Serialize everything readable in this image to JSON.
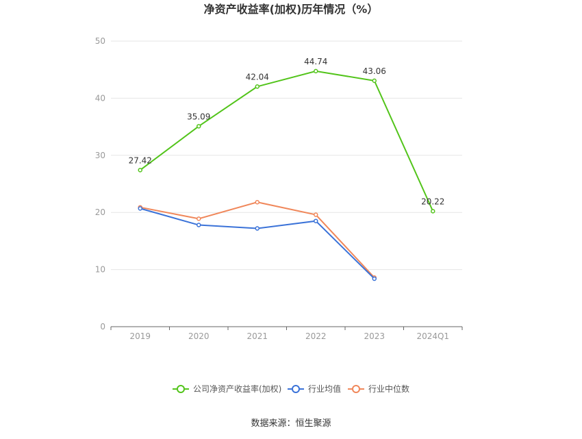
{
  "chart_data": {
    "type": "line",
    "title": "净资产收益率(加权)历年情况（%）",
    "categories": [
      "2019",
      "2020",
      "2021",
      "2022",
      "2023",
      "2024Q1"
    ],
    "ylim": [
      0,
      50
    ],
    "yticks": [
      0,
      10,
      20,
      30,
      40,
      50
    ],
    "grid": true,
    "legend_position": "bottom-center",
    "series": [
      {
        "name": "公司净资产收益率(加权)",
        "color": "#52c41a",
        "values": [
          27.42,
          35.09,
          42.04,
          44.74,
          43.06,
          20.22
        ],
        "labels": [
          "27.42",
          "35.09",
          "42.04",
          "44.74",
          "43.06",
          "20.22"
        ]
      },
      {
        "name": "行业均值",
        "color": "#3a72d8",
        "values": [
          20.7,
          17.8,
          17.2,
          18.5,
          8.4,
          null
        ]
      },
      {
        "name": "行业中位数",
        "color": "#f0875a",
        "values": [
          20.9,
          18.9,
          21.8,
          19.6,
          8.6,
          null
        ]
      }
    ],
    "source": "数据来源：恒生聚源"
  }
}
